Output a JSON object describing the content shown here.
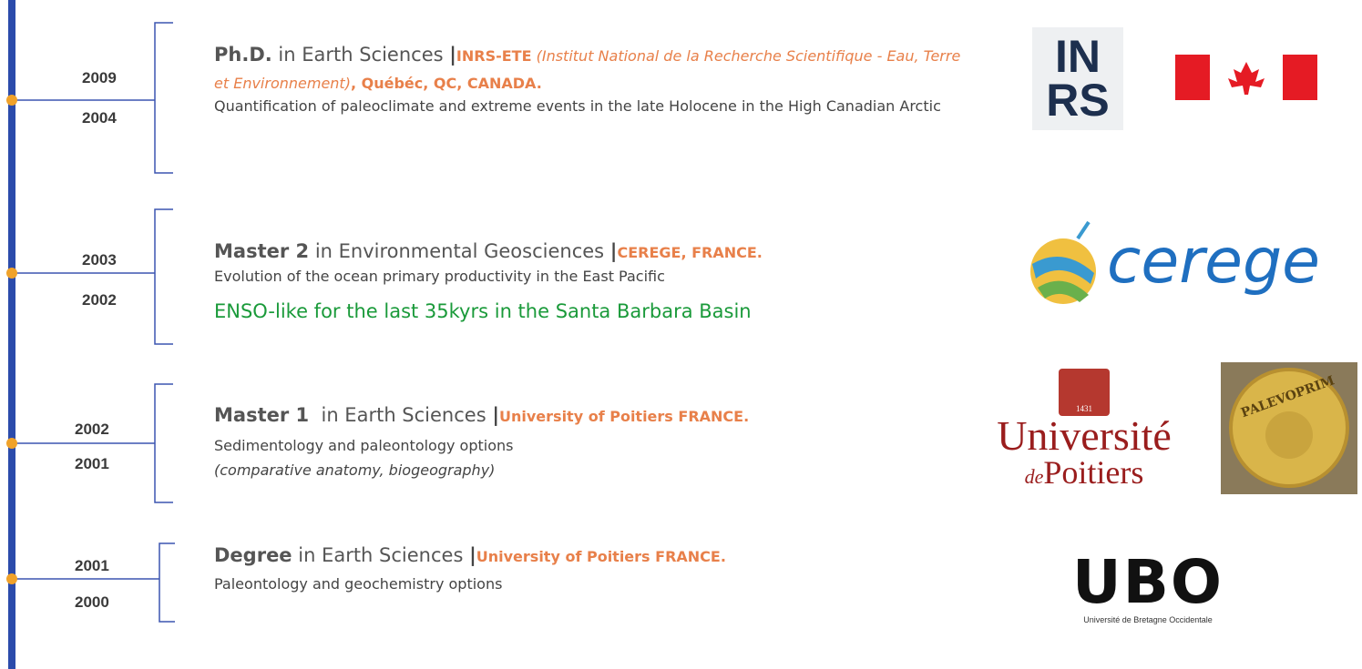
{
  "entries": [
    {
      "years": [
        "2009",
        "2004"
      ],
      "degree": "Ph.D.",
      "field": " in Earth Sciences ",
      "separator": "|",
      "institution": [
        "INRS-ETE",
        " (Institut National de la Recherche Scientifique - Eau, Terre et Environnement)",
        ", Québéc, QC, CANADA."
      ],
      "description": [
        "Quantification of paleoclimate and extreme events in the late Holocene in the High Canadian Arctic"
      ]
    },
    {
      "years": [
        "2003",
        "2002"
      ],
      "degree": "Master 2",
      "field": " in Environmental Geosciences ",
      "separator": "|",
      "institution": [
        "CEREGE, FRANCE."
      ],
      "description": [
        "Evolution of the ocean primary productivity in the East Pacific"
      ],
      "note": "ENSO-like for the last 35kyrs in the Santa Barbara Basin"
    },
    {
      "years": [
        "2002",
        "2001"
      ],
      "degree": "Master 1",
      "field": "  in Earth Sciences ",
      "separator": "|",
      "institution": [
        "University of Poitiers FRANCE."
      ],
      "description": [
        "Sedimentology and paleontology options",
        "(comparative anatomy, biogeography)"
      ]
    },
    {
      "years": [
        "2001",
        "2000"
      ],
      "degree": "Degree",
      "field": " in Earth Sciences ",
      "separator": "|",
      "institution": [
        "University of Poitiers FRANCE."
      ],
      "description": [
        " Paleontology and geochemistry options"
      ]
    }
  ],
  "logos": {
    "inrs": [
      "IN",
      "RS"
    ],
    "cerege": "cerege",
    "poitiers": [
      "1431",
      "Université",
      "de",
      "Poitiers"
    ],
    "palevoprim": "PALEVOPRIM",
    "ubo": [
      "UBO",
      "Université de Bretagne Occidentale"
    ]
  }
}
